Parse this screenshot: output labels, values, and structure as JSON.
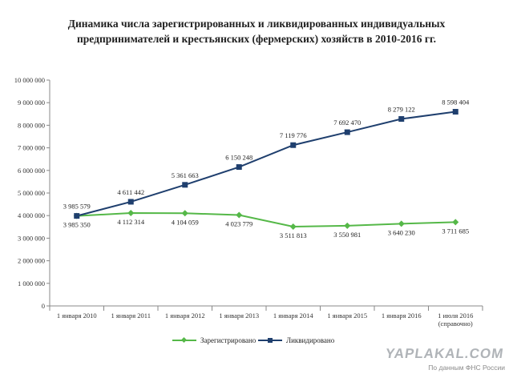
{
  "title_lines": [
    "Динамика числа зарегистрированных и ликвидированных индивидуальных",
    "предпринимателей и крестьянских (фермерских) хозяйств в 2010-2016 гг."
  ],
  "watermark": "YAPLAKAL.COM",
  "source_note": "По данным ФНС России",
  "colors": {
    "registered": "#55b848",
    "liquidated": "#1f3f6e",
    "axis": "#888888"
  },
  "chart_data": {
    "type": "line",
    "categories": [
      [
        "1 января 2010"
      ],
      [
        "1 января 2011"
      ],
      [
        "1 января 2012"
      ],
      [
        "1 января 2013"
      ],
      [
        "1 января 2014"
      ],
      [
        "1 января 2015"
      ],
      [
        "1 января 2016"
      ],
      [
        "1 июля 2016",
        "(справочно)"
      ]
    ],
    "y_ticks": [
      "0",
      "1 000 000",
      "2 000 000",
      "3 000 000",
      "4 000 000",
      "5 000 000",
      "6 000 000",
      "7 000 000",
      "8 000 000",
      "9 000 000",
      "10 000 000"
    ],
    "ylim": [
      0,
      10000000
    ],
    "grid": false,
    "legend_position": "bottom",
    "series": [
      {
        "name": "Зарегистрировано",
        "key": "registered",
        "marker": "diamond",
        "values": [
          3985350,
          4112314,
          4104059,
          4023779,
          3511813,
          3550981,
          3640230,
          3711685
        ],
        "labels": [
          "3 985 350",
          "4 112 314",
          "4 104 059",
          "4 023 779",
          "3 511 813",
          "3 550 981",
          "3 640 230",
          "3 711 685"
        ]
      },
      {
        "name": "Ликвидировано",
        "key": "liquidated",
        "marker": "square",
        "values": [
          3985579,
          4611442,
          5361663,
          6150248,
          7119776,
          7692470,
          8279122,
          8598404
        ],
        "labels": [
          "3 985 579",
          "4 611 442",
          "5 361 663",
          "6 150 248",
          "7 119 776",
          "7 692 470",
          "8 279 122",
          "8 598 404"
        ]
      }
    ]
  }
}
